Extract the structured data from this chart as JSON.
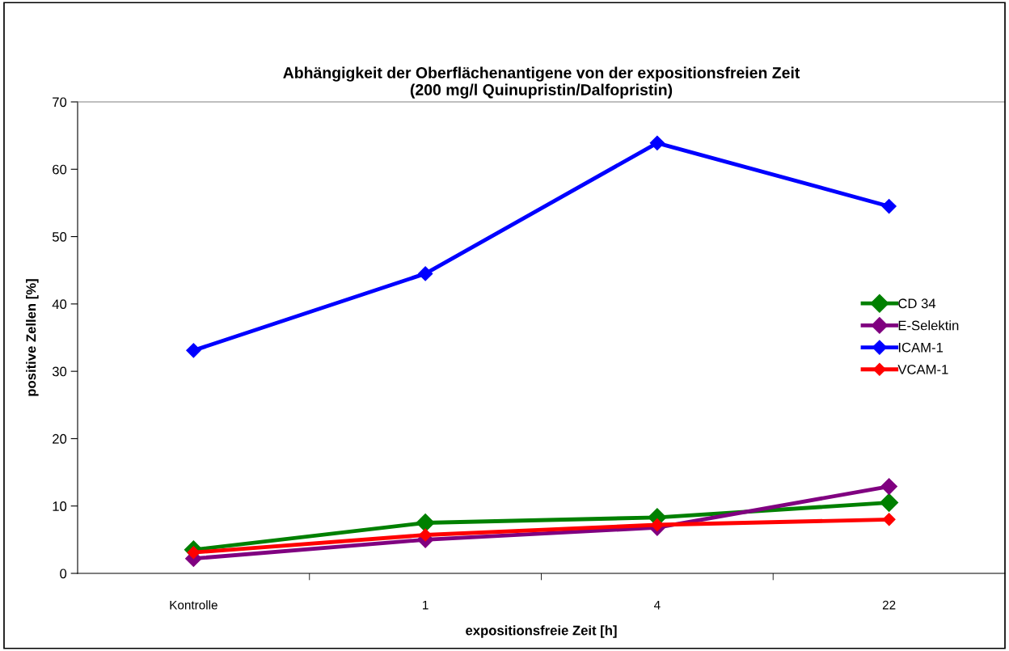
{
  "chart_data": {
    "type": "line",
    "title": "Abhängigkeit der Oberflächenantigene von der expositionsfreien Zeit\n(200 mg/l Quinupristin/Dalfopristin)",
    "xlabel": "expositionsfreie Zeit [h]",
    "ylabel": "positive Zellen [%]",
    "categories": [
      "Kontrolle",
      "1",
      "4",
      "22"
    ],
    "series": [
      {
        "name": "CD 34",
        "color": "#008000",
        "values": [
          3.5,
          7.5,
          8.3,
          10.5
        ]
      },
      {
        "name": "E-Selektin",
        "color": "#800080",
        "values": [
          2.2,
          5.0,
          6.8,
          12.9
        ]
      },
      {
        "name": "ICAM-1",
        "color": "#0000ff",
        "values": [
          33.1,
          44.5,
          63.9,
          54.5
        ]
      },
      {
        "name": "VCAM-1",
        "color": "#ff0000",
        "values": [
          3.1,
          5.7,
          7.2,
          8.0
        ]
      }
    ],
    "ylim": [
      0,
      70
    ],
    "yticks": [
      0,
      10,
      20,
      30,
      40,
      50,
      60,
      70
    ],
    "grid": false,
    "legend": "right",
    "marker": "diamond",
    "line_style": "solid"
  }
}
